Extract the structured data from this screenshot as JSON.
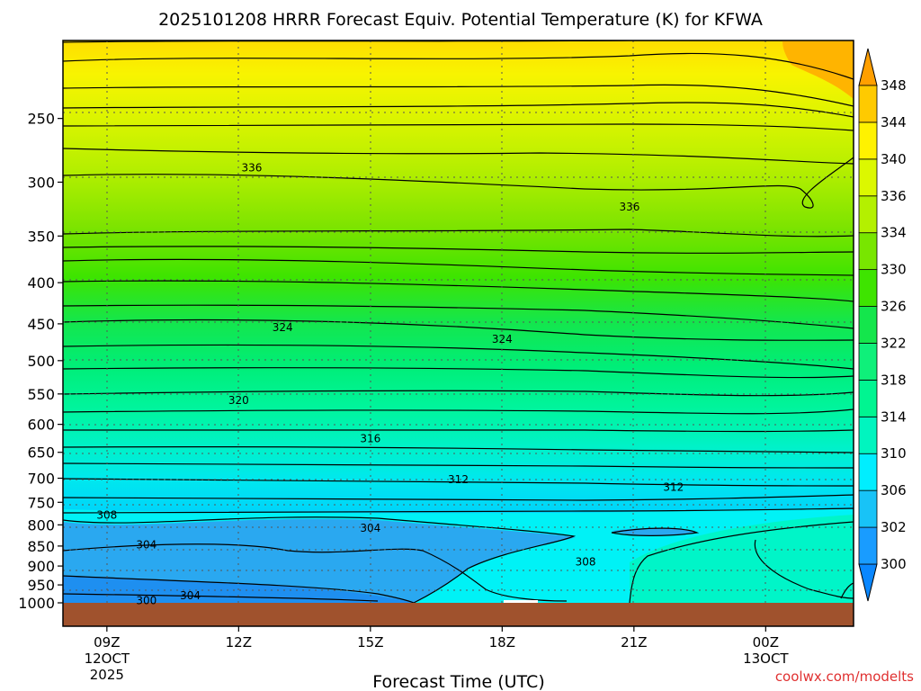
{
  "title": "2025101208 HRRR Forecast Equiv. Potential Temperature (K) for KFWA",
  "credit": "coolwx.com/modelts",
  "chart_data": {
    "type": "heatmap",
    "title": "2025101208 HRRR Forecast Equiv. Potential Temperature (K) for KFWA",
    "xlabel": "Forecast Time (UTC)",
    "ylabel": "",
    "y_scale": "log",
    "y_reversed": true,
    "ylim": [
      1000,
      200
    ],
    "xlim": [
      8,
      26
    ],
    "y_ticks": [
      250,
      300,
      350,
      400,
      450,
      500,
      550,
      600,
      650,
      700,
      750,
      800,
      850,
      900,
      950,
      1000
    ],
    "x_ticks": [
      {
        "hour": 9,
        "line1": "09Z",
        "line2": "12OCT",
        "line3": "2025"
      },
      {
        "hour": 12,
        "line1": "12Z",
        "line2": "",
        "line3": ""
      },
      {
        "hour": 15,
        "line1": "15Z",
        "line2": "",
        "line3": ""
      },
      {
        "hour": 18,
        "line1": "18Z",
        "line2": "",
        "line3": ""
      },
      {
        "hour": 21,
        "line1": "21Z",
        "line2": "",
        "line3": ""
      },
      {
        "hour": 24,
        "line1": "00Z",
        "line2": "13OCT",
        "line3": ""
      }
    ],
    "grid": true,
    "colorbar": {
      "ticks": [
        300,
        302,
        306,
        310,
        314,
        318,
        322,
        326,
        330,
        334,
        336,
        340,
        344,
        348
      ],
      "colors": [
        "#0a87ff",
        "#199cff",
        "#18c3f7",
        "#00eeff",
        "#00f5bf",
        "#00f591",
        "#0ff07a",
        "#14e64c",
        "#3ee400",
        "#78e600",
        "#b4f000",
        "#dcf800",
        "#fff200",
        "#ffca00",
        "#ff9f00"
      ]
    },
    "contour_labels": [
      {
        "value": "336",
        "x": 12.3,
        "p": 288
      },
      {
        "value": "336",
        "x": 20.9,
        "p": 322
      },
      {
        "value": "324",
        "x": 13.0,
        "p": 455
      },
      {
        "value": "324",
        "x": 18.0,
        "p": 470
      },
      {
        "value": "320",
        "x": 12.0,
        "p": 560
      },
      {
        "value": "316",
        "x": 15.0,
        "p": 625
      },
      {
        "value": "312",
        "x": 17.0,
        "p": 703
      },
      {
        "value": "312",
        "x": 21.9,
        "p": 718
      },
      {
        "value": "308",
        "x": 9.0,
        "p": 778
      },
      {
        "value": "304",
        "x": 15.0,
        "p": 808
      },
      {
        "value": "304",
        "x": 9.9,
        "p": 847
      },
      {
        "value": "308",
        "x": 19.9,
        "p": 889
      },
      {
        "value": "304",
        "x": 10.9,
        "p": 980
      },
      {
        "value": "300",
        "x": 9.9,
        "p": 993
      }
    ]
  }
}
